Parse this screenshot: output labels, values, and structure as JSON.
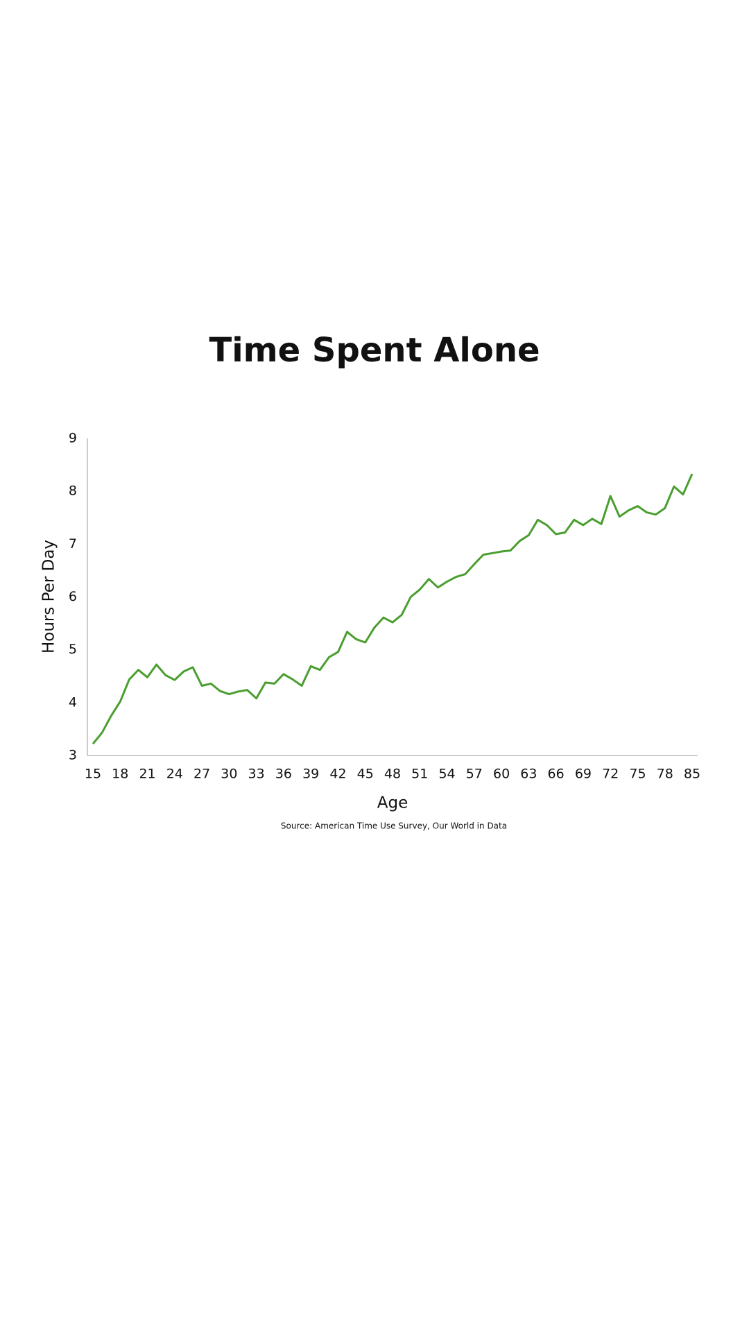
{
  "chart_data": {
    "type": "line",
    "title": "Time Spent Alone",
    "x_label": "Age",
    "y_label": "Hours Per Day",
    "source": "Source: American Time Use Survey, Our World in Data",
    "categories": [
      "15",
      null,
      null,
      "18",
      null,
      null,
      "21",
      null,
      null,
      "24",
      null,
      null,
      "27",
      null,
      null,
      "30",
      null,
      null,
      "33",
      null,
      null,
      "36",
      null,
      null,
      "39",
      null,
      null,
      "42",
      null,
      null,
      "45",
      null,
      null,
      "48",
      null,
      null,
      "51",
      null,
      null,
      "54",
      null,
      null,
      "57",
      null,
      null,
      "60",
      null,
      null,
      "63",
      null,
      null,
      "66",
      null,
      null,
      "69",
      null,
      null,
      "72",
      null,
      null,
      "75",
      null,
      null,
      "78",
      null,
      null,
      "85"
    ],
    "values": [
      3.22,
      3.43,
      3.75,
      4.02,
      4.44,
      4.62,
      4.48,
      4.72,
      4.52,
      4.43,
      4.59,
      4.67,
      4.32,
      4.36,
      4.22,
      4.16,
      4.21,
      4.24,
      4.08,
      4.38,
      4.36,
      4.54,
      4.44,
      4.32,
      4.69,
      4.62,
      4.86,
      4.96,
      5.34,
      5.2,
      5.14,
      5.42,
      5.61,
      5.52,
      5.66,
      6.0,
      6.14,
      6.34,
      6.18,
      6.29,
      6.38,
      6.43,
      6.62,
      6.8,
      6.83,
      6.86,
      6.88,
      7.06,
      7.17,
      7.46,
      7.36,
      7.19,
      7.22,
      7.46,
      7.36,
      7.48,
      7.38,
      7.91,
      7.52,
      7.64,
      7.72,
      7.6,
      7.56,
      7.68,
      8.09,
      7.94,
      8.33
    ],
    "color": "#4a9e2f",
    "ylim": [
      3,
      9
    ],
    "yticks": [
      3,
      4,
      5,
      6,
      7,
      8,
      9
    ],
    "grid": false
  }
}
